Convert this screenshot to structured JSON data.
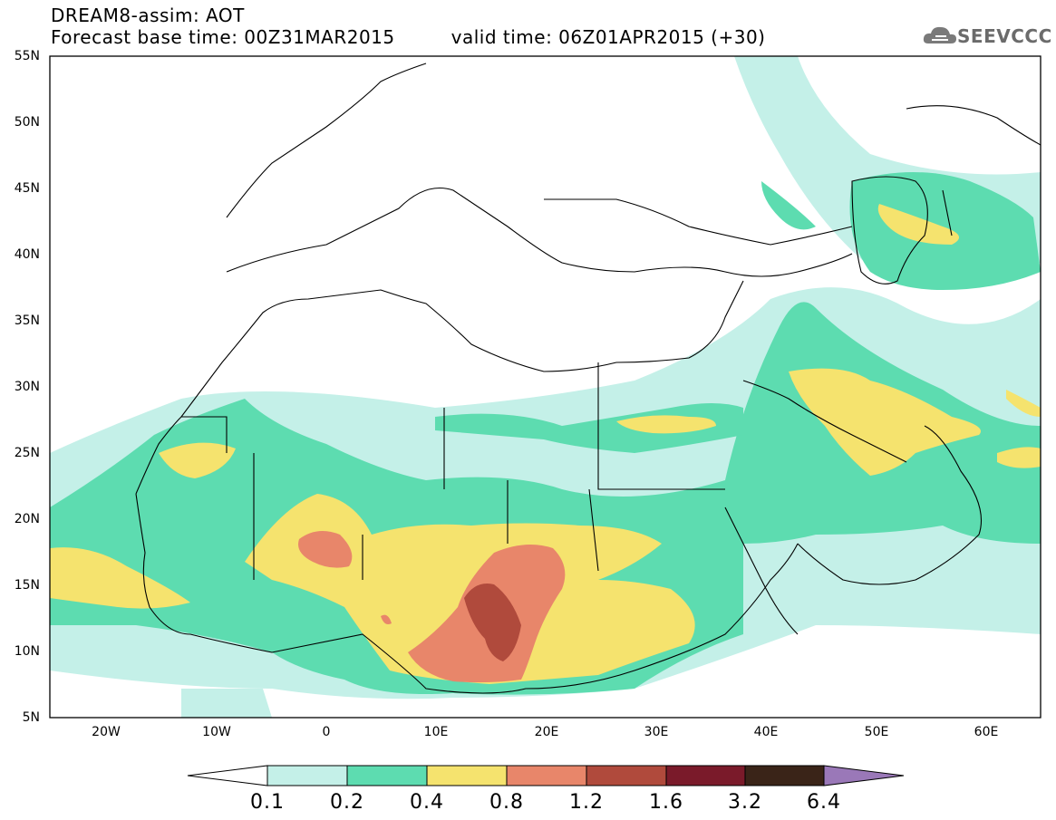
{
  "header": {
    "title": "DREAM8-assim: AOT",
    "base_time": "Forecast base time: 00Z31MAR2015",
    "valid_time": "valid time: 06Z01APR2015 (+30)"
  },
  "logo": {
    "text": "SEEVCCC",
    "icon": "cloud-icon"
  },
  "axes": {
    "lat_labels": [
      "55N",
      "50N",
      "45N",
      "40N",
      "35N",
      "30N",
      "25N",
      "20N",
      "15N",
      "10N",
      "5N"
    ],
    "lon_labels": [
      "20W",
      "10W",
      "0",
      "10E",
      "20E",
      "30E",
      "40E",
      "50E",
      "60E"
    ]
  },
  "colorbar": {
    "labels": [
      "0.1",
      "0.2",
      "0.4",
      "0.8",
      "1.2",
      "1.6",
      "3.2",
      "6.4"
    ],
    "colors": [
      "#ffffff",
      "#c4f0e8",
      "#5ddcb0",
      "#f5e36e",
      "#e8866a",
      "#b04a3c",
      "#7a1a2a",
      "#3a2418",
      "#9a78b8"
    ]
  }
}
